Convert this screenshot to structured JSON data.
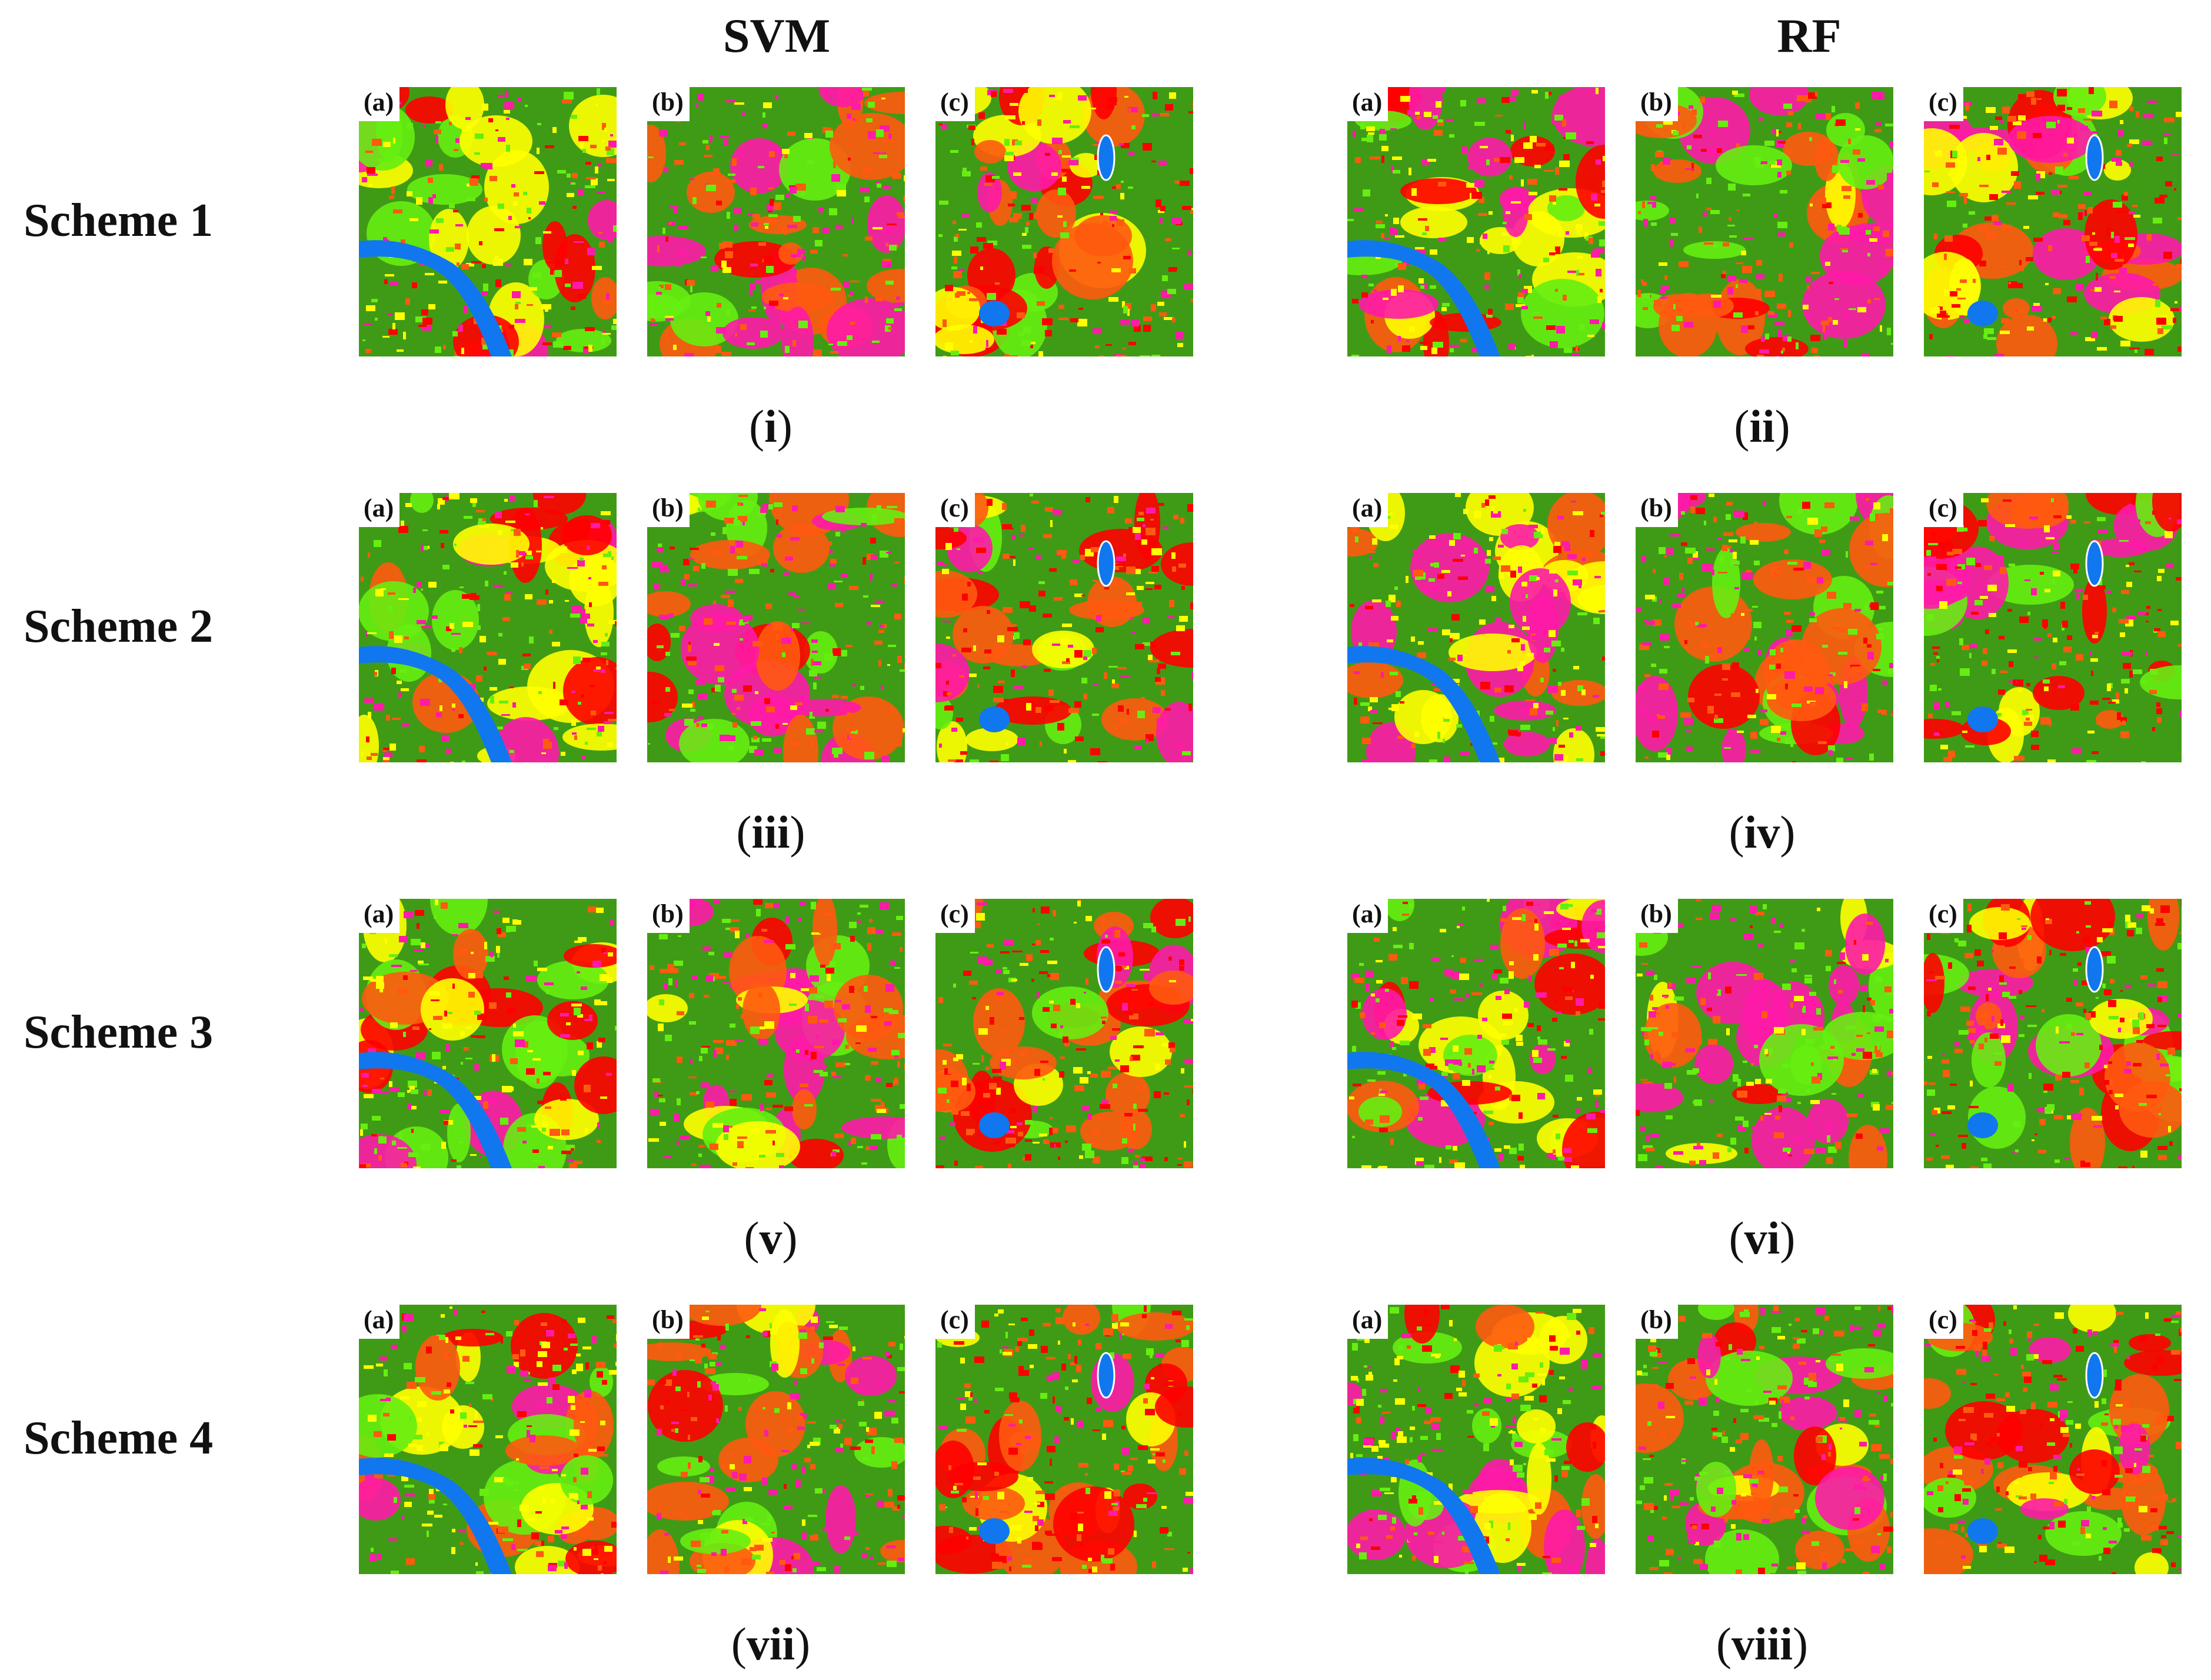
{
  "column_titles": {
    "svm": "SVM",
    "rf": "RF"
  },
  "schemes": [
    {
      "label": "Scheme 1",
      "svm_caption": "i",
      "rf_caption": "ii"
    },
    {
      "label": "Scheme 2",
      "svm_caption": "iii",
      "rf_caption": "iv"
    },
    {
      "label": "Scheme 3",
      "svm_caption": "v",
      "rf_caption": "vi"
    },
    {
      "label": "Scheme 4",
      "svm_caption": "vii",
      "rf_caption": "viii"
    }
  ],
  "panel_tags": [
    "(a)",
    "(b)",
    "(c)"
  ],
  "class_colors": {
    "vegetation_dark": "#3f9b16",
    "vegetation_light": "#66ee11",
    "bare": "#ffff00",
    "urban_red": "#ff0000",
    "orange": "#ff5a0f",
    "magenta": "#ff1aa8",
    "water": "#1177ee"
  }
}
